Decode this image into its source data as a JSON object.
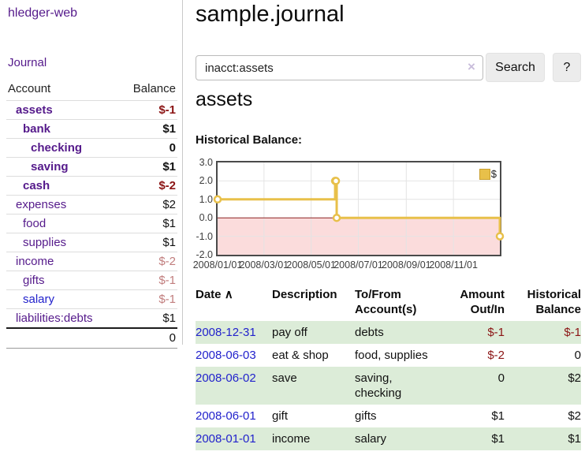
{
  "app": {
    "brand": "hledger-web"
  },
  "sidebar": {
    "journal_link": "Journal",
    "table": {
      "account_header": "Account",
      "balance_header": "Balance",
      "accounts": [
        {
          "name": "assets",
          "balance": "$-1"
        },
        {
          "name": "bank",
          "balance": "$1"
        },
        {
          "name": "checking",
          "balance": "0"
        },
        {
          "name": "saving",
          "balance": "$1"
        },
        {
          "name": "cash",
          "balance": "$-2"
        },
        {
          "name": "expenses",
          "balance": "$2"
        },
        {
          "name": "food",
          "balance": "$1"
        },
        {
          "name": "supplies",
          "balance": "$1"
        },
        {
          "name": "income",
          "balance": "$-2"
        },
        {
          "name": "gifts",
          "balance": "$-1"
        },
        {
          "name": "salary",
          "balance": "$-1"
        },
        {
          "name": "liabilities:debts",
          "balance": "$1"
        }
      ],
      "total": "0"
    }
  },
  "header": {
    "title": "sample.journal"
  },
  "search": {
    "value": "inacct:assets",
    "clear_icon": "×",
    "button_label": "Search",
    "help_label": "?"
  },
  "account_page": {
    "heading": "assets",
    "chart_label": "Historical Balance:"
  },
  "chart_data": {
    "type": "line",
    "step": true,
    "title": "Historical Balance:",
    "grid": true,
    "legend_position": "top-right",
    "legend": [
      {
        "label": "$",
        "color": "#e8c04a"
      }
    ],
    "ylim": [
      -2,
      3
    ],
    "y_ticks": [
      3.0,
      2.0,
      1.0,
      0.0,
      -1.0,
      -2.0
    ],
    "x_range_days": [
      0,
      365
    ],
    "x_ticks": [
      {
        "label": "2008/01/01",
        "day": 0
      },
      {
        "label": "2008/03/01",
        "day": 60
      },
      {
        "label": "2008/05/01",
        "day": 121
      },
      {
        "label": "2008/07/01",
        "day": 182
      },
      {
        "label": "2008/09/01",
        "day": 244
      },
      {
        "label": "2008/11/01",
        "day": 305
      }
    ],
    "series": [
      {
        "name": "$",
        "color": "#e8c04a",
        "points": [
          {
            "date": "2008-01-01",
            "day": 0,
            "value": 1
          },
          {
            "date": "2008-06-01",
            "day": 152,
            "value": 2
          },
          {
            "date": "2008-06-02",
            "day": 153,
            "value": 2
          },
          {
            "date": "2008-06-03",
            "day": 154,
            "value": 0
          },
          {
            "date": "2008-12-31",
            "day": 365,
            "value": -1
          }
        ]
      }
    ],
    "negative_region": {
      "from": 0,
      "to": -2,
      "fill": "#fbdcdc",
      "zero_line_color": "#8b2222"
    }
  },
  "register_table": {
    "headers": {
      "date": "Date",
      "sort_icon": "∧",
      "description": "Description",
      "accounts_line1": "To/From",
      "accounts_line2": "Account(s)",
      "amount_line1": "Amount",
      "amount_line2": "Out/In",
      "balance_line1": "Historical",
      "balance_line2": "Balance"
    },
    "rows": [
      {
        "date": "2008-12-31",
        "description": "pay off",
        "accounts": "debts",
        "amount": "$-1",
        "balance": "$-1"
      },
      {
        "date": "2008-06-03",
        "description": "eat & shop",
        "accounts": "food, supplies",
        "amount": "$-2",
        "balance": "0"
      },
      {
        "date": "2008-06-02",
        "description": "save",
        "accounts": "saving, checking",
        "amount": "0",
        "balance": "$2"
      },
      {
        "date": "2008-06-01",
        "description": "gift",
        "accounts": "gifts",
        "amount": "$1",
        "balance": "$2"
      },
      {
        "date": "2008-01-01",
        "description": "income",
        "accounts": "salary",
        "amount": "$1",
        "balance": "$1"
      }
    ]
  },
  "colors": {
    "link_purple": "#551a8b",
    "link_blue": "#2222cc",
    "negative_strong": "#8b1414",
    "negative_soft": "#c17d7d",
    "row_stripe_green": "#dcecd8",
    "series_gold": "#e8c04a",
    "negative_region_pink": "#fbdcdc",
    "zero_line_red": "#8b2222"
  }
}
